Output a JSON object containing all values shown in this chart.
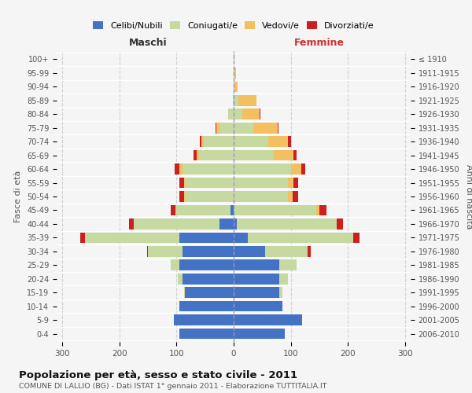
{
  "age_groups": [
    "0-4",
    "5-9",
    "10-14",
    "15-19",
    "20-24",
    "25-29",
    "30-34",
    "35-39",
    "40-44",
    "45-49",
    "50-54",
    "55-59",
    "60-64",
    "65-69",
    "70-74",
    "75-79",
    "80-84",
    "85-89",
    "90-94",
    "95-99",
    "100+"
  ],
  "birth_years": [
    "2006-2010",
    "2001-2005",
    "1996-2000",
    "1991-1995",
    "1986-1990",
    "1981-1985",
    "1976-1980",
    "1971-1975",
    "1966-1970",
    "1961-1965",
    "1956-1960",
    "1951-1955",
    "1946-1950",
    "1941-1945",
    "1936-1940",
    "1931-1935",
    "1926-1930",
    "1921-1925",
    "1916-1920",
    "1911-1915",
    "≤ 1910"
  ],
  "male_celibi": [
    95,
    105,
    95,
    85,
    90,
    95,
    90,
    95,
    25,
    5,
    0,
    0,
    0,
    0,
    0,
    0,
    0,
    0,
    0,
    0,
    0
  ],
  "male_coniugati": [
    0,
    0,
    0,
    2,
    8,
    15,
    60,
    165,
    150,
    95,
    85,
    85,
    90,
    60,
    52,
    25,
    10,
    2,
    0,
    0,
    0
  ],
  "male_vedovi": [
    0,
    0,
    0,
    0,
    0,
    0,
    0,
    0,
    0,
    2,
    2,
    2,
    5,
    5,
    5,
    5,
    0,
    0,
    0,
    0,
    0
  ],
  "male_divorziati": [
    0,
    0,
    0,
    0,
    0,
    0,
    2,
    8,
    8,
    8,
    8,
    8,
    8,
    5,
    2,
    2,
    0,
    0,
    0,
    0,
    0
  ],
  "female_nubili": [
    90,
    120,
    85,
    80,
    80,
    80,
    55,
    25,
    5,
    0,
    0,
    0,
    0,
    0,
    0,
    0,
    0,
    0,
    0,
    0,
    0
  ],
  "female_coniugate": [
    0,
    0,
    0,
    5,
    15,
    30,
    75,
    185,
    175,
    145,
    95,
    95,
    100,
    70,
    60,
    35,
    15,
    8,
    2,
    2,
    0
  ],
  "female_vedove": [
    0,
    0,
    0,
    0,
    0,
    0,
    0,
    0,
    0,
    5,
    8,
    10,
    18,
    35,
    35,
    42,
    30,
    32,
    5,
    2,
    2
  ],
  "female_divorziate": [
    0,
    0,
    0,
    0,
    0,
    0,
    5,
    10,
    12,
    12,
    10,
    8,
    8,
    5,
    5,
    2,
    2,
    0,
    0,
    0,
    0
  ],
  "colors_celibi": "#4472C4",
  "colors_coniugati": "#C5D9A0",
  "colors_vedovi": "#F2C060",
  "colors_divorziati": "#CC2020",
  "xlim": 310,
  "title": "Popolazione per età, sesso e stato civile - 2011",
  "subtitle": "COMUNE DI LALLIO (BG) - Dati ISTAT 1° gennaio 2011 - Elaborazione TUTTITALIA.IT",
  "legend_labels": [
    "Celibi/Nubili",
    "Coniugati/e",
    "Vedovi/e",
    "Divorziati/e"
  ],
  "label_maschi": "Maschi",
  "label_femmine": "Femmine",
  "ylabel_left": "Fasce di età",
  "ylabel_right": "Anni di nascita",
  "bg_color": "#F5F5F5"
}
